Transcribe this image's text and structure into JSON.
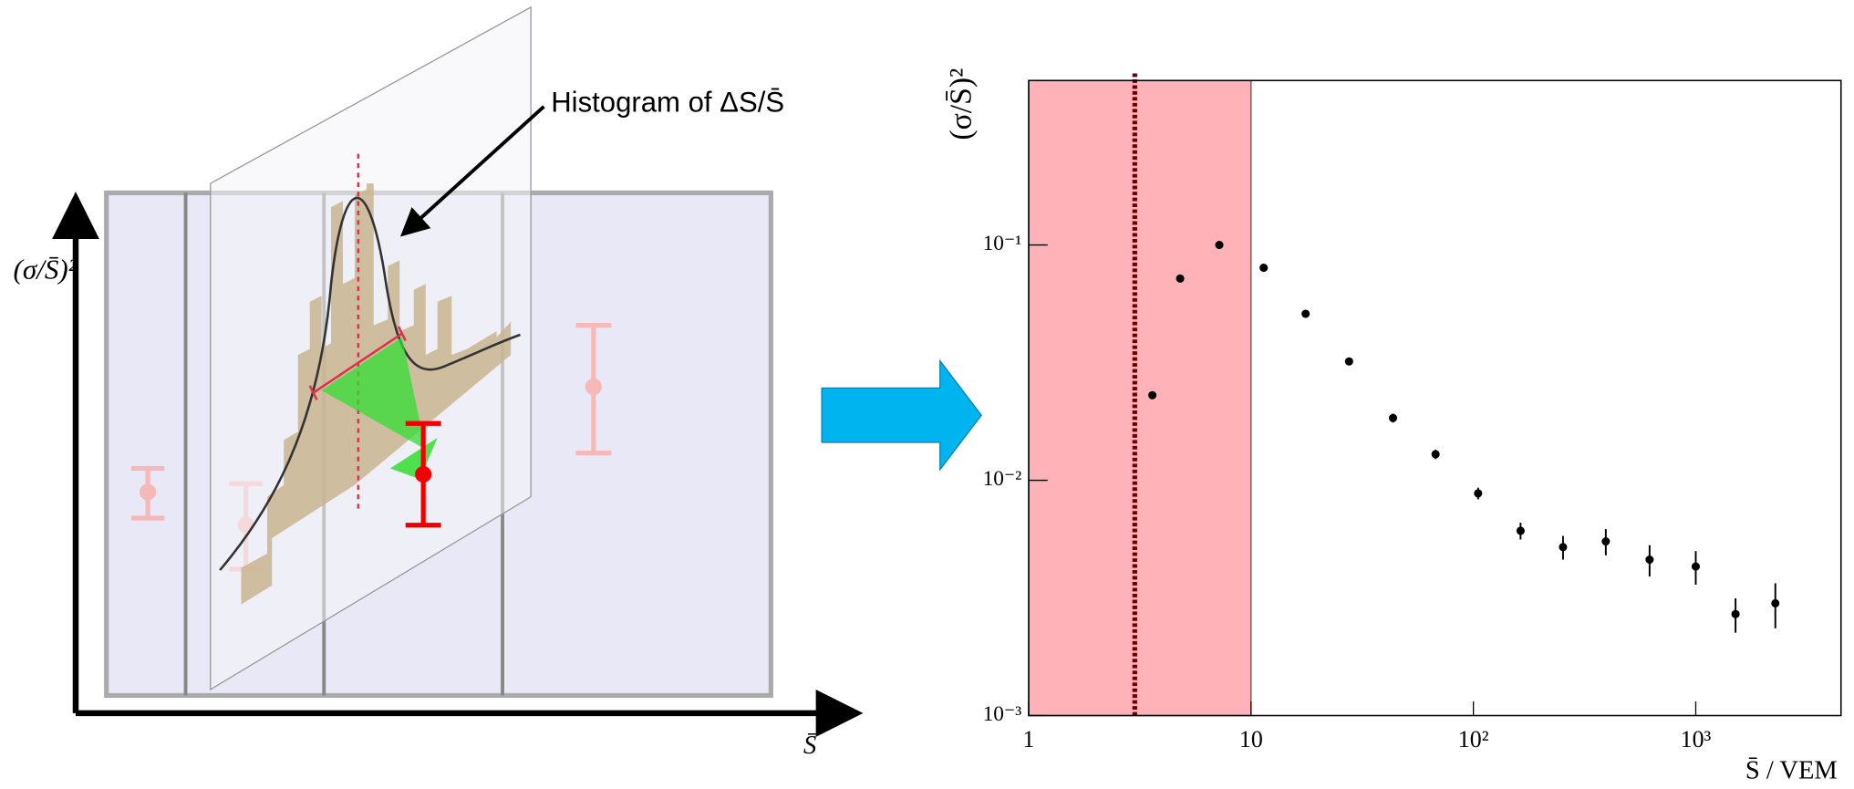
{
  "schematic": {
    "annotation": "Histogram of ΔS/S̄",
    "y_label": "(σ/S̄)²",
    "x_label": "S̄"
  },
  "chart_data": {
    "type": "scatter",
    "x_label": "S̄ / VEM",
    "y_label": "(σ/S̄)²",
    "x": [
      3.6,
      4.8,
      7.2,
      11.4,
      17.6,
      27.6,
      43.5,
      67.6,
      105,
      163,
      253,
      394,
      620,
      1000,
      1510,
      2280
    ],
    "values": [
      0.023,
      0.072,
      0.1,
      0.08,
      0.051,
      0.032,
      0.0184,
      0.0129,
      0.0088,
      0.0061,
      0.0052,
      0.0055,
      0.0046,
      0.0043,
      0.0027,
      0.003
    ],
    "errors": [
      null,
      null,
      null,
      null,
      null,
      null,
      0.0008,
      0.0006,
      0.0005,
      0.0005,
      0.0006,
      0.0007,
      0.0007,
      0.0007,
      0.00045,
      0.00065
    ],
    "color": "#000000",
    "xlim": [
      1,
      4500
    ],
    "ylim": [
      0.001,
      0.5
    ],
    "log_x": true,
    "log_y": true,
    "xticks": [
      1,
      10,
      {
        "value": 100,
        "label": "10²"
      },
      {
        "value": 1000,
        "label": "10³"
      }
    ],
    "yticks": [
      {
        "value": 0.001,
        "label": "10⁻³"
      },
      {
        "value": 0.01,
        "label": "10⁻²"
      },
      {
        "value": 0.1,
        "label": "10⁻¹"
      }
    ],
    "shaded_region": {
      "from": 1,
      "to": 10,
      "color": "#ffb3b8"
    },
    "threshold_line": {
      "value": 3,
      "color": "#6b0000"
    }
  }
}
